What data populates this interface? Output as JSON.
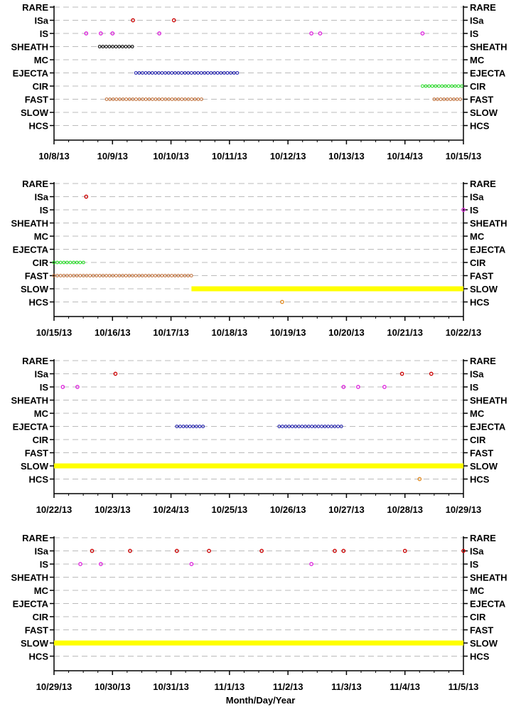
{
  "figure": {
    "xlabel": "Month/Day/Year"
  },
  "colors": {
    "RARE": "#000000",
    "ISa": "#cc0000",
    "IS": "#dd22dd",
    "SHEATH": "#000000",
    "MC": "#000000",
    "EJECTA": "#1a1aaa",
    "CIR": "#22dd22",
    "FAST": "#c0703a",
    "SLOW": "#ffff00",
    "HCS": "#e08a20",
    "grid": "#bbbbbb"
  },
  "chart_data": [
    {
      "type": "scatter",
      "categories": [
        "RARE",
        "ISa",
        "IS",
        "SHEATH",
        "MC",
        "EJECTA",
        "CIR",
        "FAST",
        "SLOW",
        "HCS"
      ],
      "xlim": [
        0,
        7
      ],
      "x_tick_labels": [
        "10/8/13",
        "10/9/13",
        "10/10/13",
        "10/11/13",
        "10/12/13",
        "10/13/13",
        "10/14/13",
        "10/15/13"
      ],
      "grid": "horizontal dashed",
      "point_events": [
        {
          "category": "ISa",
          "x": [
            1.35,
            2.05
          ]
        },
        {
          "category": "IS",
          "x": [
            0.55,
            0.8,
            1.0,
            1.8,
            4.4,
            4.55,
            6.3
          ]
        },
        {
          "category": "HCS",
          "x": []
        }
      ],
      "interval_events": [
        {
          "category": "SHEATH",
          "start": 0.78,
          "end": 1.38
        },
        {
          "category": "EJECTA",
          "start": 1.4,
          "end": 3.15
        },
        {
          "category": "CIR",
          "start": 6.3,
          "end": 7.0
        },
        {
          "category": "FAST",
          "start": 0.9,
          "end": 2.55
        },
        {
          "category": "FAST",
          "start": 6.5,
          "end": 7.0
        }
      ]
    },
    {
      "type": "scatter",
      "categories": [
        "RARE",
        "ISa",
        "IS",
        "SHEATH",
        "MC",
        "EJECTA",
        "CIR",
        "FAST",
        "SLOW",
        "HCS"
      ],
      "xlim": [
        0,
        7
      ],
      "x_tick_labels": [
        "10/15/13",
        "10/16/13",
        "10/17/13",
        "10/18/13",
        "10/19/13",
        "10/20/13",
        "10/21/13",
        "10/22/13"
      ],
      "grid": "horizontal dashed",
      "point_events": [
        {
          "category": "ISa",
          "x": [
            0.55
          ]
        },
        {
          "category": "IS",
          "x": [
            7.0
          ]
        },
        {
          "category": "HCS",
          "x": [
            3.9
          ]
        }
      ],
      "interval_events": [
        {
          "category": "CIR",
          "start": 0.0,
          "end": 0.55
        },
        {
          "category": "FAST",
          "start": 0.0,
          "end": 2.35
        },
        {
          "category": "SLOW",
          "start": 2.35,
          "end": 7.0
        }
      ]
    },
    {
      "type": "scatter",
      "categories": [
        "RARE",
        "ISa",
        "IS",
        "SHEATH",
        "MC",
        "EJECTA",
        "CIR",
        "FAST",
        "SLOW",
        "HCS"
      ],
      "xlim": [
        0,
        7
      ],
      "x_tick_labels": [
        "10/22/13",
        "10/23/13",
        "10/24/13",
        "10/25/13",
        "10/26/13",
        "10/27/13",
        "10/28/13",
        "10/29/13"
      ],
      "grid": "horizontal dashed",
      "point_events": [
        {
          "category": "ISa",
          "x": [
            1.05,
            5.95,
            6.45
          ]
        },
        {
          "category": "IS",
          "x": [
            0.15,
            0.4,
            4.95,
            5.2,
            5.65
          ]
        },
        {
          "category": "HCS",
          "x": [
            6.25
          ]
        }
      ],
      "interval_events": [
        {
          "category": "EJECTA",
          "start": 2.1,
          "end": 2.55
        },
        {
          "category": "EJECTA",
          "start": 3.85,
          "end": 4.95
        },
        {
          "category": "SLOW",
          "start": 0.0,
          "end": 7.0
        }
      ]
    },
    {
      "type": "scatter",
      "categories": [
        "RARE",
        "ISa",
        "IS",
        "SHEATH",
        "MC",
        "EJECTA",
        "CIR",
        "FAST",
        "SLOW",
        "HCS"
      ],
      "xlim": [
        0,
        7
      ],
      "x_tick_labels": [
        "10/29/13",
        "10/30/13",
        "10/31/13",
        "11/1/13",
        "11/2/13",
        "11/3/13",
        "11/4/13",
        "11/5/13"
      ],
      "grid": "horizontal dashed",
      "point_events": [
        {
          "category": "ISa",
          "x": [
            0.65,
            1.3,
            2.1,
            2.65,
            3.55,
            4.8,
            4.95,
            6.0,
            7.0
          ]
        },
        {
          "category": "IS",
          "x": [
            0.45,
            0.8,
            2.35,
            4.4
          ]
        },
        {
          "category": "HCS",
          "x": []
        }
      ],
      "interval_events": [
        {
          "category": "SLOW",
          "start": 0.0,
          "end": 7.0
        }
      ]
    }
  ]
}
